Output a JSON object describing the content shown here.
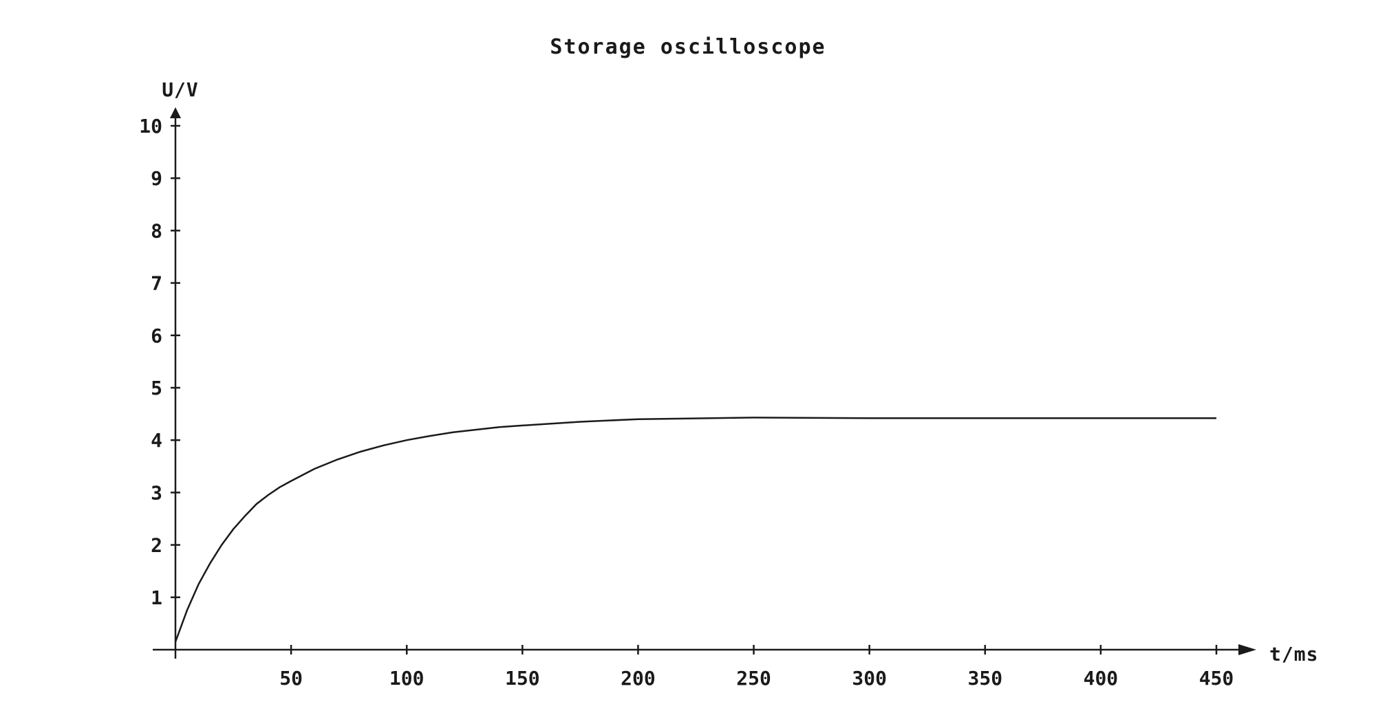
{
  "chart_data": {
    "type": "line",
    "title": "Storage oscilloscope",
    "xlabel": "t/ms",
    "ylabel": "U/V",
    "xlim": [
      0,
      450
    ],
    "ylim": [
      0,
      10
    ],
    "x_ticks": [
      50,
      100,
      150,
      200,
      250,
      300,
      350,
      400,
      450
    ],
    "y_ticks": [
      1,
      2,
      3,
      4,
      5,
      6,
      7,
      8,
      9,
      10
    ],
    "grid": false,
    "legend": "none",
    "series": [
      {
        "x": [
          0,
          5,
          10,
          15,
          20,
          25,
          30,
          35,
          40,
          45,
          50,
          60,
          70,
          80,
          90,
          100,
          110,
          120,
          130,
          140,
          150,
          175,
          200,
          250,
          300,
          350,
          400,
          450
        ],
        "y": [
          0.15,
          0.75,
          1.25,
          1.65,
          2.0,
          2.3,
          2.55,
          2.78,
          2.95,
          3.1,
          3.22,
          3.45,
          3.63,
          3.78,
          3.9,
          4.0,
          4.08,
          4.15,
          4.2,
          4.25,
          4.28,
          4.35,
          4.4,
          4.43,
          4.42,
          4.42,
          4.42,
          4.42
        ]
      }
    ]
  }
}
